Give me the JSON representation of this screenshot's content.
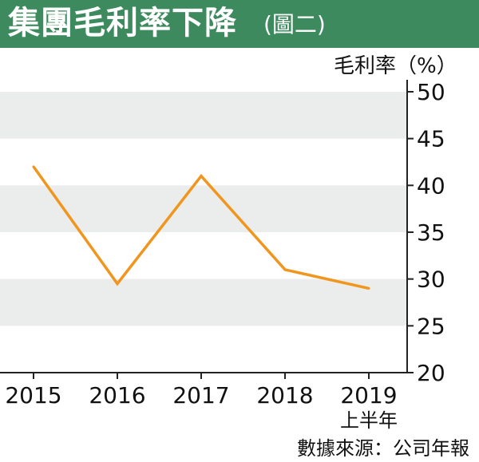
{
  "header": {
    "title": "集團毛利率下降",
    "subtitle": "(圖二)",
    "background": "#3d8a5e"
  },
  "chart_data": {
    "type": "line",
    "title": "集團毛利率下降",
    "subtitle": "(圖二)",
    "ylabel": "毛利率（%）",
    "categories": [
      "2015",
      "2016",
      "2017",
      "2018",
      "2019"
    ],
    "category_sublabels": [
      "",
      "",
      "",
      "",
      "上半年"
    ],
    "series": [
      {
        "values": [
          42.0,
          29.5,
          41.0,
          31.0,
          29.0
        ],
        "color": "#f0961e"
      }
    ],
    "ylim": [
      20,
      50
    ],
    "yticks": [
      20,
      25,
      30,
      35,
      40,
      45,
      50
    ],
    "yaxis_side": "right",
    "band_color": "#ebecec",
    "grid": false
  },
  "source": "數據來源：公司年報"
}
